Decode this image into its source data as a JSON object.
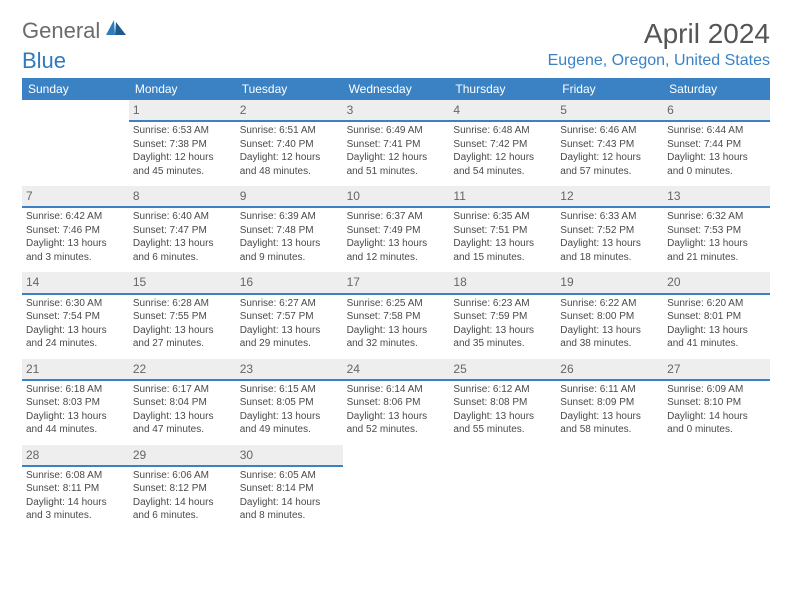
{
  "logo": {
    "text_gray": "General",
    "text_blue": "Blue"
  },
  "title": "April 2024",
  "location": "Eugene, Oregon, United States",
  "colors": {
    "header_bg": "#3b82c4",
    "header_text": "#ffffff",
    "date_bg": "#eeeeee",
    "accent": "#3b82c4",
    "body_text": "#4a4a4a",
    "location_text": "#3b82c4"
  },
  "day_headers": [
    "Sunday",
    "Monday",
    "Tuesday",
    "Wednesday",
    "Thursday",
    "Friday",
    "Saturday"
  ],
  "start_offset": 1,
  "days": [
    {
      "n": "1",
      "sr": "6:53 AM",
      "ss": "7:38 PM",
      "dl": "12 hours and 45 minutes."
    },
    {
      "n": "2",
      "sr": "6:51 AM",
      "ss": "7:40 PM",
      "dl": "12 hours and 48 minutes."
    },
    {
      "n": "3",
      "sr": "6:49 AM",
      "ss": "7:41 PM",
      "dl": "12 hours and 51 minutes."
    },
    {
      "n": "4",
      "sr": "6:48 AM",
      "ss": "7:42 PM",
      "dl": "12 hours and 54 minutes."
    },
    {
      "n": "5",
      "sr": "6:46 AM",
      "ss": "7:43 PM",
      "dl": "12 hours and 57 minutes."
    },
    {
      "n": "6",
      "sr": "6:44 AM",
      "ss": "7:44 PM",
      "dl": "13 hours and 0 minutes."
    },
    {
      "n": "7",
      "sr": "6:42 AM",
      "ss": "7:46 PM",
      "dl": "13 hours and 3 minutes."
    },
    {
      "n": "8",
      "sr": "6:40 AM",
      "ss": "7:47 PM",
      "dl": "13 hours and 6 minutes."
    },
    {
      "n": "9",
      "sr": "6:39 AM",
      "ss": "7:48 PM",
      "dl": "13 hours and 9 minutes."
    },
    {
      "n": "10",
      "sr": "6:37 AM",
      "ss": "7:49 PM",
      "dl": "13 hours and 12 minutes."
    },
    {
      "n": "11",
      "sr": "6:35 AM",
      "ss": "7:51 PM",
      "dl": "13 hours and 15 minutes."
    },
    {
      "n": "12",
      "sr": "6:33 AM",
      "ss": "7:52 PM",
      "dl": "13 hours and 18 minutes."
    },
    {
      "n": "13",
      "sr": "6:32 AM",
      "ss": "7:53 PM",
      "dl": "13 hours and 21 minutes."
    },
    {
      "n": "14",
      "sr": "6:30 AM",
      "ss": "7:54 PM",
      "dl": "13 hours and 24 minutes."
    },
    {
      "n": "15",
      "sr": "6:28 AM",
      "ss": "7:55 PM",
      "dl": "13 hours and 27 minutes."
    },
    {
      "n": "16",
      "sr": "6:27 AM",
      "ss": "7:57 PM",
      "dl": "13 hours and 29 minutes."
    },
    {
      "n": "17",
      "sr": "6:25 AM",
      "ss": "7:58 PM",
      "dl": "13 hours and 32 minutes."
    },
    {
      "n": "18",
      "sr": "6:23 AM",
      "ss": "7:59 PM",
      "dl": "13 hours and 35 minutes."
    },
    {
      "n": "19",
      "sr": "6:22 AM",
      "ss": "8:00 PM",
      "dl": "13 hours and 38 minutes."
    },
    {
      "n": "20",
      "sr": "6:20 AM",
      "ss": "8:01 PM",
      "dl": "13 hours and 41 minutes."
    },
    {
      "n": "21",
      "sr": "6:18 AM",
      "ss": "8:03 PM",
      "dl": "13 hours and 44 minutes."
    },
    {
      "n": "22",
      "sr": "6:17 AM",
      "ss": "8:04 PM",
      "dl": "13 hours and 47 minutes."
    },
    {
      "n": "23",
      "sr": "6:15 AM",
      "ss": "8:05 PM",
      "dl": "13 hours and 49 minutes."
    },
    {
      "n": "24",
      "sr": "6:14 AM",
      "ss": "8:06 PM",
      "dl": "13 hours and 52 minutes."
    },
    {
      "n": "25",
      "sr": "6:12 AM",
      "ss": "8:08 PM",
      "dl": "13 hours and 55 minutes."
    },
    {
      "n": "26",
      "sr": "6:11 AM",
      "ss": "8:09 PM",
      "dl": "13 hours and 58 minutes."
    },
    {
      "n": "27",
      "sr": "6:09 AM",
      "ss": "8:10 PM",
      "dl": "14 hours and 0 minutes."
    },
    {
      "n": "28",
      "sr": "6:08 AM",
      "ss": "8:11 PM",
      "dl": "14 hours and 3 minutes."
    },
    {
      "n": "29",
      "sr": "6:06 AM",
      "ss": "8:12 PM",
      "dl": "14 hours and 6 minutes."
    },
    {
      "n": "30",
      "sr": "6:05 AM",
      "ss": "8:14 PM",
      "dl": "14 hours and 8 minutes."
    }
  ],
  "labels": {
    "sunrise": "Sunrise:",
    "sunset": "Sunset:",
    "daylight": "Daylight:"
  }
}
